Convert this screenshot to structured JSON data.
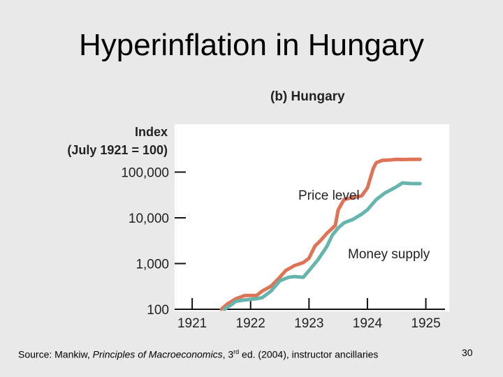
{
  "slide": {
    "title": "Hyperinflation in Hungary",
    "source_prefix": "Source: Mankiw, ",
    "source_book": "Principles of Macroeconomics",
    "source_edition_num": ", 3",
    "source_edition_sup": "rd",
    "source_suffix": " ed. (2004), instructor ancillaries",
    "page_number": "30"
  },
  "chart_data": {
    "type": "line",
    "panel_label": "(b) Hungary",
    "ylabel_line1": "Index",
    "ylabel_line2": "(July 1921 = 100)",
    "yscale": "log",
    "ylim": [
      100,
      400000
    ],
    "xlim": [
      1920.7,
      1925.4
    ],
    "xticks": [
      1921,
      1922,
      1923,
      1924,
      1925
    ],
    "xtick_labels": [
      "1921",
      "1922",
      "1923",
      "1924",
      "1925"
    ],
    "yticks": [
      100,
      1000,
      10000,
      100000
    ],
    "ytick_labels": [
      "100",
      "1,000",
      "10,000",
      "100,000"
    ],
    "grid": false,
    "series": [
      {
        "name": "Price level",
        "color": "#de7356",
        "x": [
          1921.5,
          1921.6,
          1921.75,
          1921.9,
          1922.1,
          1922.2,
          1922.35,
          1922.5,
          1922.6,
          1922.75,
          1922.9,
          1923.0,
          1923.1,
          1923.2,
          1923.3,
          1923.45,
          1923.5,
          1923.6,
          1923.75,
          1923.9,
          1924.0,
          1924.1,
          1924.15,
          1924.25,
          1924.4,
          1924.5,
          1924.6,
          1924.75,
          1924.9
        ],
        "values": [
          100,
          130,
          170,
          200,
          200,
          250,
          320,
          500,
          700,
          900,
          1050,
          1300,
          2400,
          3200,
          4500,
          6800,
          15000,
          25000,
          28000,
          30000,
          45000,
          120000,
          160000,
          180000,
          185000,
          190000,
          188000,
          190000,
          190000
        ]
      },
      {
        "name": "Money supply",
        "color": "#66b5ad",
        "x": [
          1921.55,
          1921.65,
          1921.75,
          1921.9,
          1922.1,
          1922.2,
          1922.35,
          1922.5,
          1922.65,
          1922.75,
          1922.9,
          1923.0,
          1923.15,
          1923.3,
          1923.4,
          1923.5,
          1923.6,
          1923.75,
          1923.9,
          1924.0,
          1924.15,
          1924.3,
          1924.5,
          1924.6,
          1924.75,
          1924.9
        ],
        "values": [
          100,
          120,
          150,
          160,
          170,
          180,
          250,
          420,
          500,
          520,
          500,
          700,
          1200,
          2300,
          4200,
          6000,
          7800,
          9200,
          12000,
          15000,
          25000,
          35000,
          48000,
          58000,
          56000,
          56000
        ]
      }
    ],
    "annotations": [
      {
        "text": "Price level",
        "series": "Price level"
      },
      {
        "text": "Money supply",
        "series": "Money supply"
      }
    ]
  }
}
